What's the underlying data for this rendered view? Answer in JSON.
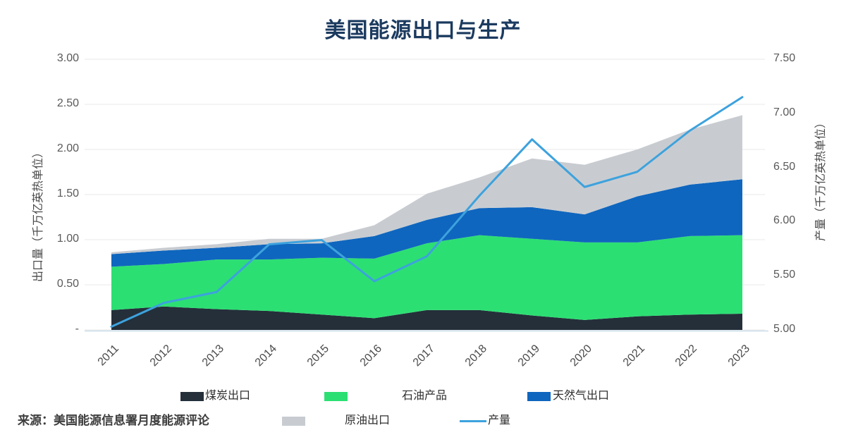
{
  "chart_data": {
    "type": "area",
    "stacked": true,
    "title": "美国能源出口与生产",
    "categories": [
      "2011",
      "2012",
      "2013",
      "2014",
      "2015",
      "2016",
      "2017",
      "2018",
      "2019",
      "2020",
      "2021",
      "2022",
      "2023"
    ],
    "series": [
      {
        "name": "煤炭出口",
        "key": "coal-exports",
        "type": "area",
        "axis": "left",
        "color": "#242f3a",
        "values": [
          0.22,
          0.26,
          0.23,
          0.21,
          0.17,
          0.13,
          0.22,
          0.22,
          0.16,
          0.11,
          0.15,
          0.17,
          0.18
        ]
      },
      {
        "name": "石油产品",
        "key": "petroleum-products",
        "type": "area",
        "axis": "left",
        "color": "#2cdf73",
        "values": [
          0.48,
          0.47,
          0.55,
          0.57,
          0.63,
          0.66,
          0.74,
          0.83,
          0.85,
          0.86,
          0.82,
          0.87,
          0.87
        ]
      },
      {
        "name": "天然气出口",
        "key": "natural-gas-exports",
        "type": "area",
        "axis": "left",
        "color": "#0f66be",
        "values": [
          0.14,
          0.15,
          0.13,
          0.17,
          0.16,
          0.25,
          0.26,
          0.3,
          0.35,
          0.31,
          0.51,
          0.57,
          0.62
        ]
      },
      {
        "name": "原油出口",
        "key": "crude-oil-exports",
        "type": "area",
        "axis": "left",
        "color": "#c8ccd1",
        "values": [
          0.02,
          0.03,
          0.04,
          0.06,
          0.05,
          0.12,
          0.29,
          0.34,
          0.54,
          0.55,
          0.52,
          0.61,
          0.71
        ]
      },
      {
        "name": "产量",
        "key": "production",
        "type": "line",
        "axis": "right",
        "color": "#3da2dd",
        "values": [
          5.03,
          5.25,
          5.35,
          5.79,
          5.83,
          5.45,
          5.68,
          6.24,
          6.76,
          6.32,
          6.46,
          6.84,
          7.15
        ]
      }
    ],
    "left_axis": {
      "title": "出口量（千万亿英热单位）",
      "ticks": [
        "3.00",
        "2.50",
        "2.00",
        "1.50",
        "1.00",
        "0.50",
        "-"
      ],
      "ylim": [
        0,
        3.0
      ]
    },
    "right_axis": {
      "title": "产量（千万亿英热单位）",
      "ticks": [
        "7.50",
        "7.00",
        "6.50",
        "6.00",
        "5.50",
        "5.00"
      ],
      "ylim": [
        5.0,
        7.5
      ]
    },
    "grid": true,
    "legend_position": "bottom"
  },
  "legend": {
    "rows": [
      {
        "items": [
          {
            "series": 0
          },
          {
            "series": 1
          },
          {
            "series": 2
          }
        ]
      },
      {
        "items": [
          {
            "series": 3
          },
          {
            "series": 4
          }
        ]
      }
    ]
  },
  "source": "来源：美国能源信息署月度能源评论",
  "colors": {
    "title_text": "#1b3a5f",
    "gridline": "#eaeaea",
    "baseline": "#d5e3ee",
    "tick_text": "#595959"
  }
}
